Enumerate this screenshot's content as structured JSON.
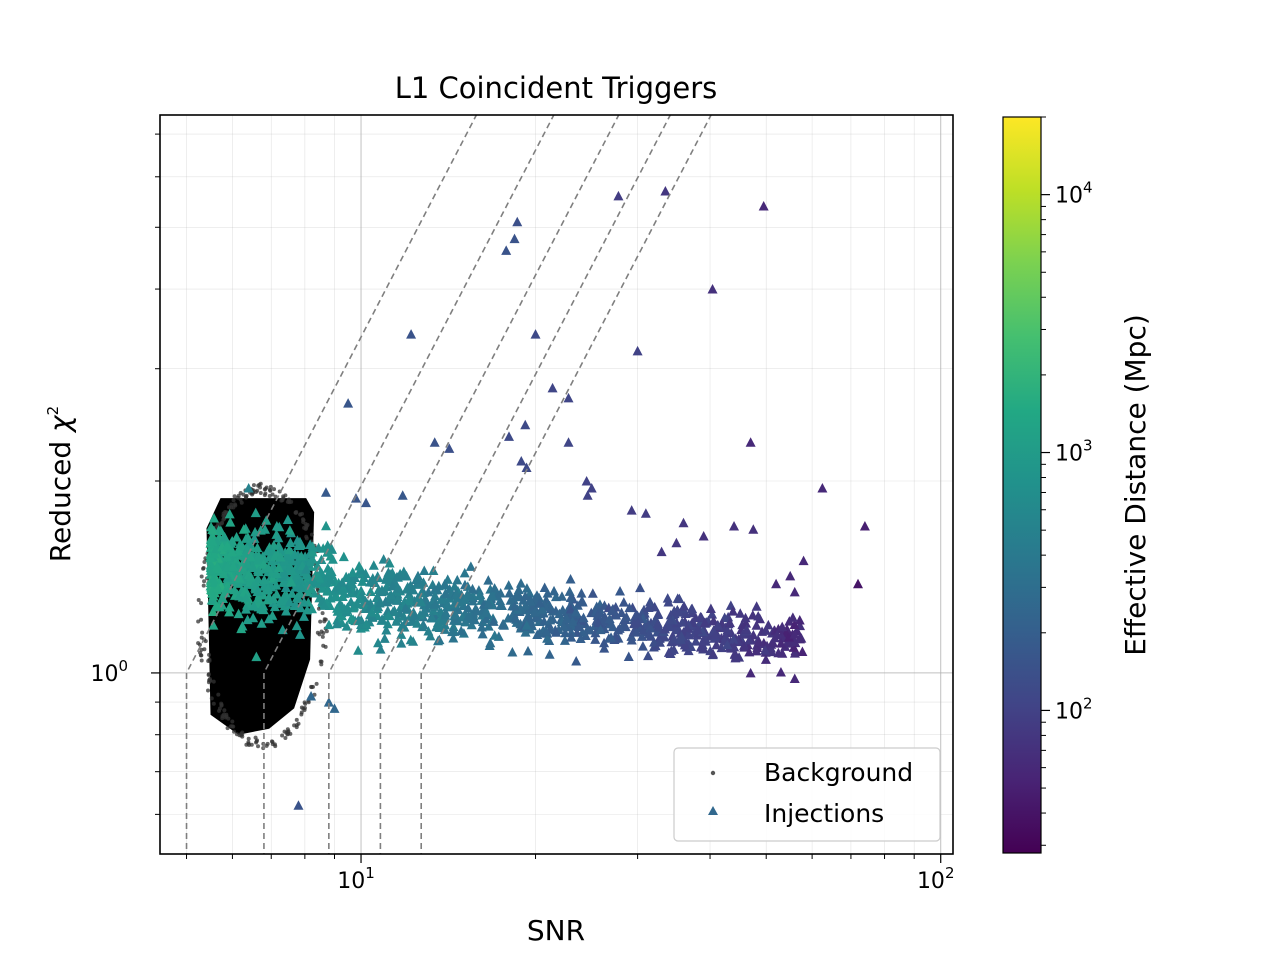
{
  "chart_data": {
    "type": "scatter",
    "title": "L1 Coincident Triggers",
    "xlabel": "SNR",
    "ylabel_text": "Reduced ",
    "ylabel_symbol": "χ",
    "ylabel_sup": "2",
    "xscale": "log",
    "yscale": "log",
    "xlim": [
      4.5,
      105
    ],
    "ylim": [
      0.52,
      7.5
    ],
    "grid": true,
    "legend_position": "lower-right",
    "x_ticks": [
      {
        "value": 10,
        "base": "10",
        "exp": "1"
      },
      {
        "value": 100,
        "base": "10",
        "exp": "2"
      }
    ],
    "y_ticks": [
      {
        "value": 1,
        "base": "10",
        "exp": "0"
      }
    ],
    "series": [
      {
        "name": "Background",
        "marker": "dot",
        "color": "#000000",
        "cluster": {
          "snr_range": [
            5.5,
            8.3
          ],
          "rchisq_range": [
            0.8,
            1.88
          ]
        }
      },
      {
        "name": "Injections",
        "marker": "triangle",
        "color": "#31688e",
        "points": [
          [
            18.4,
            4.8,
            150
          ],
          [
            18.6,
            5.1,
            140
          ],
          [
            17.8,
            4.6,
            150
          ],
          [
            27.8,
            5.6,
            90
          ],
          [
            33.5,
            5.7,
            80
          ],
          [
            49.5,
            5.4,
            60
          ],
          [
            40.4,
            4.0,
            70
          ],
          [
            20.0,
            3.4,
            120
          ],
          [
            30.0,
            3.2,
            100
          ],
          [
            12.2,
            3.4,
            150
          ],
          [
            9.5,
            2.65,
            160
          ],
          [
            21.4,
            2.8,
            110
          ],
          [
            22.8,
            2.7,
            110
          ],
          [
            19.2,
            2.45,
            120
          ],
          [
            18.0,
            2.35,
            120
          ],
          [
            13.4,
            2.3,
            150
          ],
          [
            14.2,
            2.25,
            140
          ],
          [
            22.8,
            2.3,
            110
          ],
          [
            47.0,
            2.3,
            60
          ],
          [
            18.9,
            2.15,
            120
          ],
          [
            19.3,
            2.1,
            120
          ],
          [
            24.5,
            2.0,
            100
          ],
          [
            25.0,
            1.95,
            100
          ],
          [
            24.6,
            1.9,
            100
          ],
          [
            62.5,
            1.95,
            60
          ],
          [
            6.4,
            1.95,
            500
          ],
          [
            8.7,
            1.92,
            180
          ],
          [
            11.8,
            1.9,
            170
          ],
          [
            9.8,
            1.88,
            160
          ],
          [
            10.2,
            1.85,
            160
          ],
          [
            29.3,
            1.8,
            90
          ],
          [
            31.0,
            1.78,
            90
          ],
          [
            36.0,
            1.72,
            80
          ],
          [
            44.0,
            1.7,
            70
          ],
          [
            47.5,
            1.68,
            70
          ],
          [
            74.0,
            1.7,
            50
          ],
          [
            39.0,
            1.64,
            70
          ],
          [
            35.0,
            1.6,
            80
          ],
          [
            33.0,
            1.55,
            80
          ],
          [
            58.0,
            1.5,
            60
          ],
          [
            72.0,
            1.38,
            40
          ],
          [
            55.0,
            1.42,
            60
          ],
          [
            52.0,
            1.38,
            60
          ],
          [
            56.0,
            1.34,
            60
          ],
          [
            56.0,
            0.98,
            60
          ],
          [
            47.0,
            1.0,
            60
          ],
          [
            8.2,
            0.92,
            250
          ],
          [
            8.8,
            0.9,
            250
          ],
          [
            9.0,
            0.88,
            250
          ],
          [
            7.8,
            0.62,
            150
          ]
        ]
      }
    ],
    "snr_threshold_curves": [
      5.0,
      6.8,
      8.8,
      10.8,
      12.7
    ],
    "colorbar": {
      "label": "Effective Distance (Mpc)",
      "scale": "log",
      "range": [
        28,
        20000
      ],
      "colormap": "viridis",
      "ticks": [
        {
          "value": 100,
          "base": "10",
          "exp": "2"
        },
        {
          "value": 1000,
          "base": "10",
          "exp": "3"
        },
        {
          "value": 10000,
          "base": "10",
          "exp": "4"
        }
      ]
    }
  }
}
